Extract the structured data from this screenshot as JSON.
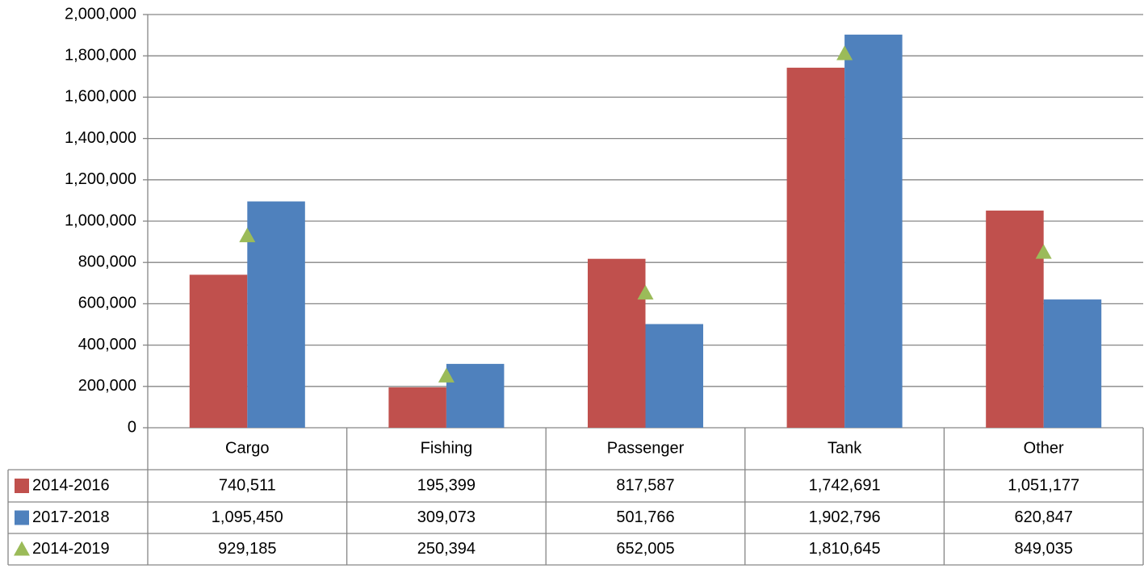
{
  "chart_data": {
    "type": "bar",
    "categories": [
      "Cargo",
      "Fishing",
      "Passenger",
      "Tank",
      "Other"
    ],
    "series": [
      {
        "name": "2014-2016",
        "type": "bar",
        "color": "#c0504d",
        "values": [
          740511,
          195399,
          817587,
          1742691,
          1051177
        ],
        "value_labels": [
          "740,511",
          "195,399",
          "817,587",
          "1,742,691",
          "1,051,177"
        ]
      },
      {
        "name": "2017-2018",
        "type": "bar",
        "color": "#4f81bd",
        "values": [
          1095450,
          309073,
          501766,
          1902796,
          620847
        ],
        "value_labels": [
          "1,095,450",
          "309,073",
          "501,766",
          "1,902,796",
          "620,847"
        ]
      },
      {
        "name": "2014-2019",
        "type": "marker",
        "color": "#9bbb59",
        "values": [
          929185,
          250394,
          652005,
          1810645,
          849035
        ],
        "value_labels": [
          "929,185",
          "250,394",
          "652,005",
          "1,810,645",
          "849,035"
        ]
      }
    ],
    "ylim": [
      0,
      2000000
    ],
    "yticks": [
      0,
      {
        "value": 200000,
        "label": "200,000"
      },
      {
        "value": 400000,
        "label": "400,000"
      },
      {
        "value": 600000,
        "label": "600,000"
      },
      {
        "value": 800000,
        "label": "800,000"
      },
      {
        "value": 1000000,
        "label": "1,000,000"
      },
      {
        "value": 1200000,
        "label": "1,200,000"
      },
      {
        "value": 1400000,
        "label": "1,400,000"
      },
      {
        "value": 1600000,
        "label": "1,600,000"
      },
      {
        "value": 1800000,
        "label": "1,800,000"
      },
      {
        "value": 2000000,
        "label": "2,000,000"
      }
    ],
    "grid": true,
    "data_table": true
  }
}
